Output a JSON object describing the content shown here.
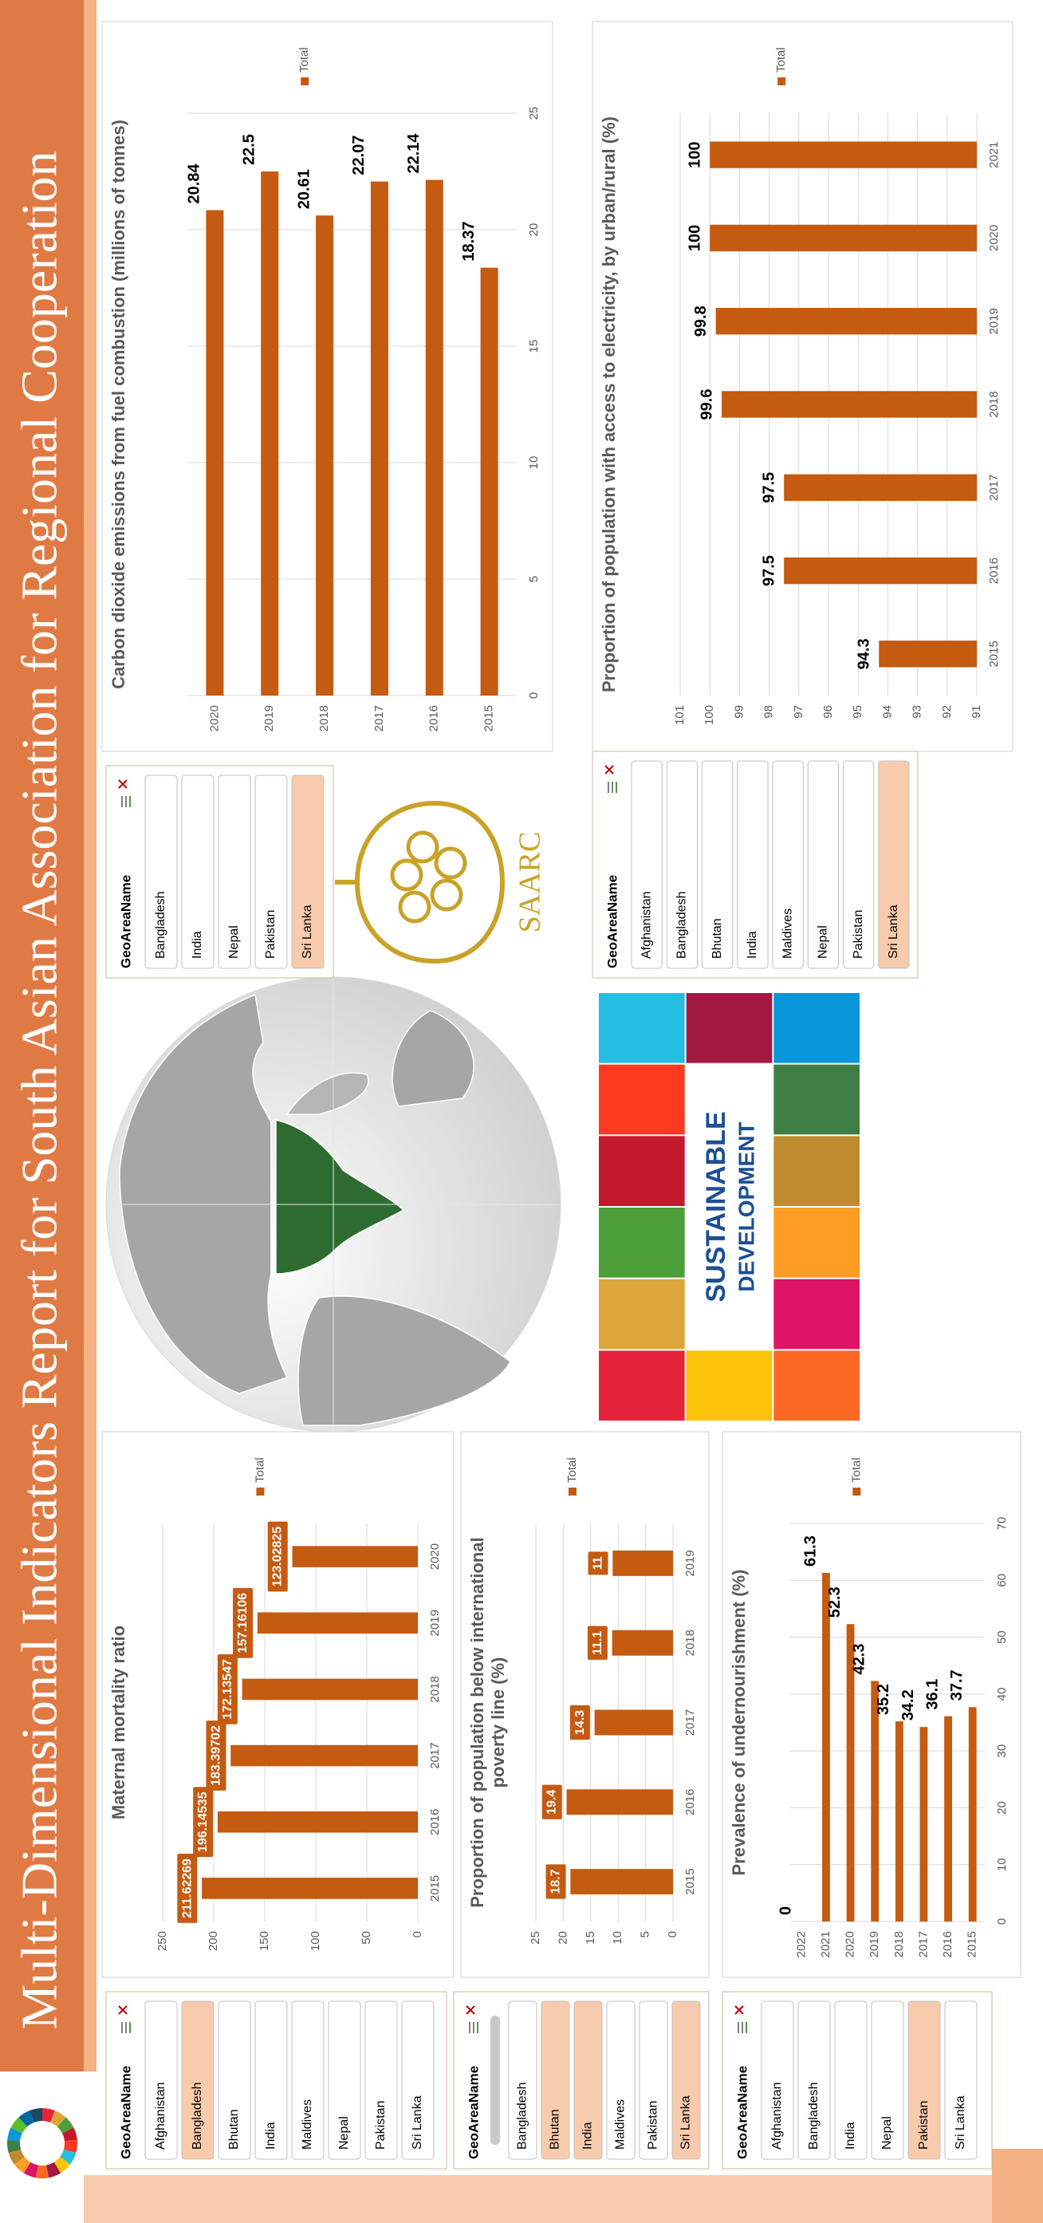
{
  "header": {
    "title": "Multi-Dimensional Indicators Report for South Asian Association for Regional Cooperation"
  },
  "chart_data": [
    {
      "type": "bar",
      "orientation": "vertical",
      "title": "Maternal mortality ratio",
      "categories": [
        "2015",
        "2016",
        "2017",
        "2018",
        "2019",
        "2020"
      ],
      "series": [
        {
          "name": "Total",
          "color": "#c55a11",
          "values": [
            211.62269,
            196.14535,
            183.39702,
            172.13547,
            157.16106,
            123.02825
          ]
        }
      ],
      "ylim": [
        0,
        250
      ],
      "yticks": [
        0,
        50,
        100,
        150,
        200,
        250
      ],
      "grid": true,
      "legend": "right",
      "value_label_box": true
    },
    {
      "type": "bar",
      "orientation": "vertical",
      "title": "Proportion of population below international poverty line (%)",
      "categories": [
        "2015",
        "2016",
        "2017",
        "2018",
        "2019"
      ],
      "series": [
        {
          "name": "Total",
          "color": "#c55a11",
          "values": [
            18.7,
            19.4,
            14.3,
            11.1,
            11
          ]
        }
      ],
      "ylim": [
        0,
        25
      ],
      "yticks": [
        0,
        5,
        10,
        15,
        20,
        25
      ],
      "grid": true,
      "legend": "right",
      "value_label_box": true
    },
    {
      "type": "bar",
      "orientation": "horizontal",
      "title": "Prevalence of undernourishment (%)",
      "categories": [
        "2022",
        "2021",
        "2020",
        "2019",
        "2018",
        "2017",
        "2016",
        "2015"
      ],
      "series": [
        {
          "name": "Total",
          "color": "#c55a11",
          "values": [
            0,
            61.3,
            52.3,
            42.3,
            35.2,
            34.2,
            36.1,
            37.7
          ]
        }
      ],
      "xlim": [
        0,
        70
      ],
      "xticks": [
        0,
        10,
        20,
        30,
        40,
        50,
        60,
        70
      ],
      "grid": true,
      "legend": "right",
      "value_label_box": false
    },
    {
      "type": "bar",
      "orientation": "horizontal",
      "title": "Carbon dioxide emissions from fuel combustion (millions of tonnes)",
      "categories": [
        "2020",
        "2019",
        "2018",
        "2017",
        "2016",
        "2015"
      ],
      "series": [
        {
          "name": "Total",
          "color": "#c55a11",
          "values": [
            20.84,
            22.5,
            20.61,
            22.07,
            22.14,
            18.37
          ]
        }
      ],
      "xlim": [
        0,
        25
      ],
      "xticks": [
        0,
        5,
        10,
        15,
        20,
        25
      ],
      "grid": true,
      "legend": "right",
      "value_label_box": false
    },
    {
      "type": "bar",
      "orientation": "vertical",
      "title": "Proportion of population with access to electricity, by urban/rural (%)",
      "categories": [
        "2015",
        "2016",
        "2017",
        "2018",
        "2019",
        "2020",
        "2021"
      ],
      "series": [
        {
          "name": "Total",
          "color": "#c55a11",
          "values": [
            94.3,
            97.5,
            97.5,
            99.6,
            99.8,
            100,
            100
          ]
        }
      ],
      "ylim": [
        91,
        101
      ],
      "yticks": [
        91,
        92,
        93,
        94,
        95,
        96,
        97,
        98,
        99,
        100,
        101
      ],
      "grid": true,
      "legend": "right",
      "value_label_box": false
    }
  ],
  "slicers": [
    {
      "title": "GeoAreaName",
      "items": [
        "Afghanistan",
        "Bangladesh",
        "Bhutan",
        "India",
        "Maldives",
        "Nepal",
        "Pakistan",
        "Sri Lanka"
      ],
      "selected": [
        false,
        true,
        false,
        false,
        false,
        false,
        false,
        false
      ]
    },
    {
      "title": "GeoAreaName",
      "items": [
        "Bangladesh",
        "Bhutan",
        "India",
        "Maldives",
        "Pakistan",
        "Sri Lanka"
      ],
      "selected": [
        false,
        true,
        true,
        false,
        false,
        true
      ]
    },
    {
      "title": "GeoAreaName",
      "items": [
        "Afghanistan",
        "Bangladesh",
        "India",
        "Nepal",
        "Pakistan",
        "Sri Lanka"
      ],
      "selected": [
        false,
        false,
        false,
        false,
        true,
        false
      ]
    },
    {
      "title": "GeoAreaName",
      "items": [
        "Bangladesh",
        "India",
        "Nepal",
        "Pakistan",
        "Sri Lanka"
      ],
      "selected": [
        false,
        false,
        false,
        false,
        true
      ]
    },
    {
      "title": "GeoAreaName",
      "items": [
        "Afghanistan",
        "Bangladesh",
        "Bhutan",
        "India",
        "Maldives",
        "Nepal",
        "Pakistan",
        "Sri Lanka"
      ],
      "selected": [
        false,
        false,
        false,
        false,
        false,
        false,
        false,
        true
      ]
    }
  ],
  "logo": {
    "text": "SAARC"
  },
  "sdg_banner": {
    "line1": "SUSTAINABLE",
    "line2": "DEVELOPMENT"
  }
}
